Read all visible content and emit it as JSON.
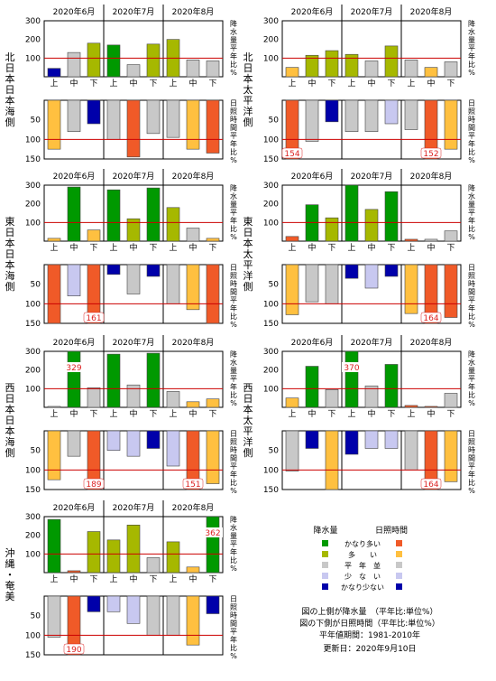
{
  "months": [
    "2020年6月",
    "2020年7月",
    "2020年8月"
  ],
  "decades": [
    "上",
    "中",
    "下",
    "上",
    "中",
    "下",
    "上",
    "中",
    "下"
  ],
  "precip_axis_label": "平年比％",
  "sun_axis_label": "平年比％",
  "precip_ticks": [
    100,
    200,
    300
  ],
  "sun_ticks": [
    50,
    100,
    150
  ],
  "colors": {
    "much_above": "#009900",
    "above": "#a6b800",
    "normal": "#c8c8c8",
    "below": "#c8c8f0",
    "much_below": "#0000aa",
    "sun_much_above": "#f05a28",
    "sun_above": "#ffc040",
    "sun_normal": "#c8c8c8",
    "sun_below": "#c8c8f0",
    "sun_much_below": "#0000aa",
    "ref_line": "#cc0000"
  },
  "chart_data": [
    {
      "type": "bar",
      "region": "北日本日本海側",
      "categories": [
        "6月上",
        "6月中",
        "6月下",
        "7月上",
        "7月中",
        "7月下",
        "8月上",
        "8月中",
        "8月下"
      ],
      "precip": [
        45,
        130,
        180,
        170,
        65,
        175,
        200,
        90,
        85
      ],
      "precip_class": [
        "much_below",
        "normal",
        "above",
        "much_above",
        "normal",
        "above",
        "above",
        "normal",
        "normal"
      ],
      "sun": [
        125,
        80,
        60,
        100,
        145,
        85,
        95,
        125,
        135
      ],
      "sun_class": [
        "sun_above",
        "sun_normal",
        "sun_much_below",
        "sun_normal",
        "sun_much_above",
        "sun_normal",
        "sun_normal",
        "sun_above",
        "sun_much_above"
      ],
      "precip_ylim": [
        0,
        300
      ],
      "sun_ylim": [
        0,
        150
      ]
    },
    {
      "type": "bar",
      "region": "北日本太平洋側",
      "categories": [
        "6月上",
        "6月中",
        "6月下",
        "7月上",
        "7月中",
        "7月下",
        "8月上",
        "8月中",
        "8月下"
      ],
      "precip": [
        50,
        115,
        140,
        120,
        85,
        165,
        90,
        50,
        80
      ],
      "precip_class": [
        "sun_above",
        "above",
        "above",
        "above",
        "normal",
        "above",
        "normal",
        "sun_above",
        "normal"
      ],
      "sun": [
        154,
        105,
        55,
        80,
        80,
        60,
        75,
        152,
        125
      ],
      "sun_class": [
        "sun_much_above",
        "sun_normal",
        "sun_much_below",
        "sun_normal",
        "sun_normal",
        "sun_below",
        "sun_normal",
        "sun_much_above",
        "sun_above"
      ],
      "precip_ylim": [
        0,
        300
      ],
      "sun_ylim": [
        0,
        150
      ],
      "sun_labels": [
        {
          "index": 0,
          "text": "154"
        },
        {
          "index": 7,
          "text": "152"
        }
      ]
    },
    {
      "type": "bar",
      "region": "東日本日本海側",
      "categories": [
        "6月上",
        "6月中",
        "6月下",
        "7月上",
        "7月中",
        "7月下",
        "8月上",
        "8月中",
        "8月下"
      ],
      "precip": [
        15,
        290,
        60,
        275,
        120,
        285,
        180,
        70,
        15
      ],
      "precip_class": [
        "sun_above",
        "much_above",
        "sun_above",
        "much_above",
        "above",
        "much_above",
        "above",
        "normal",
        "sun_above"
      ],
      "sun": [
        150,
        80,
        161,
        25,
        75,
        30,
        100,
        115,
        150
      ],
      "sun_class": [
        "sun_much_above",
        "sun_below",
        "sun_much_above",
        "much_below",
        "normal",
        "much_below",
        "normal",
        "sun_above",
        "sun_much_above"
      ],
      "precip_ylim": [
        0,
        300
      ],
      "sun_ylim": [
        0,
        150
      ],
      "sun_labels": [
        {
          "index": 2,
          "text": "161"
        }
      ]
    },
    {
      "type": "bar",
      "region": "東日本太平洋側",
      "categories": [
        "6月上",
        "6月中",
        "6月下",
        "7月上",
        "7月中",
        "7月下",
        "8月上",
        "8月中",
        "8月下"
      ],
      "precip": [
        25,
        195,
        125,
        300,
        170,
        265,
        10,
        10,
        55
      ],
      "precip_class": [
        "sun_much_above",
        "much_above",
        "above",
        "much_above",
        "above",
        "much_above",
        "sun_much_above",
        "normal",
        "normal"
      ],
      "sun": [
        128,
        95,
        100,
        35,
        60,
        30,
        125,
        164,
        135
      ],
      "sun_class": [
        "sun_above",
        "normal",
        "normal",
        "much_below",
        "below",
        "much_below",
        "sun_above",
        "sun_much_above",
        "sun_much_above"
      ],
      "precip_ylim": [
        0,
        300
      ],
      "sun_ylim": [
        0,
        150
      ],
      "sun_labels": [
        {
          "index": 7,
          "text": "164"
        }
      ]
    },
    {
      "type": "bar",
      "region": "西日本日本海側",
      "categories": [
        "6月上",
        "6月中",
        "6月下",
        "7月上",
        "7月中",
        "7月下",
        "8月上",
        "8月中",
        "8月下"
      ],
      "precip": [
        5,
        329,
        105,
        285,
        120,
        290,
        85,
        30,
        45
      ],
      "precip_class": [
        "normal",
        "much_above",
        "normal",
        "much_above",
        "normal",
        "much_above",
        "normal",
        "sun_above",
        "sun_above"
      ],
      "sun": [
        125,
        65,
        189,
        50,
        65,
        45,
        90,
        151,
        135
      ],
      "sun_class": [
        "sun_above",
        "normal",
        "sun_much_above",
        "below",
        "below",
        "much_below",
        "below",
        "sun_much_above",
        "sun_above"
      ],
      "precip_ylim": [
        0,
        300
      ],
      "sun_ylim": [
        0,
        150
      ],
      "precip_labels": [
        {
          "index": 1,
          "text": "329"
        }
      ],
      "sun_labels": [
        {
          "index": 2,
          "text": "189"
        },
        {
          "index": 7,
          "text": "151"
        }
      ]
    },
    {
      "type": "bar",
      "region": "西日本太平洋側",
      "categories": [
        "6月上",
        "6月中",
        "6月下",
        "7月上",
        "7月中",
        "7月下",
        "8月上",
        "8月中",
        "8月下"
      ],
      "precip": [
        50,
        220,
        95,
        370,
        115,
        230,
        10,
        5,
        75
      ],
      "precip_class": [
        "sun_above",
        "much_above",
        "normal",
        "much_above",
        "normal",
        "much_above",
        "sun_much_above",
        "sun_much_above",
        "normal"
      ],
      "sun": [
        103,
        45,
        150,
        60,
        45,
        45,
        100,
        164,
        130
      ],
      "sun_class": [
        "normal",
        "much_below",
        "sun_above",
        "much_below",
        "below",
        "below",
        "normal",
        "sun_much_above",
        "sun_above"
      ],
      "precip_ylim": [
        0,
        300
      ],
      "sun_ylim": [
        0,
        150
      ],
      "precip_labels": [
        {
          "index": 3,
          "text": "370"
        }
      ],
      "sun_labels": [
        {
          "index": 7,
          "text": "164"
        }
      ]
    },
    {
      "type": "bar",
      "region": "沖縄・奄美",
      "categories": [
        "6月上",
        "6月中",
        "6月下",
        "7月上",
        "7月中",
        "7月下",
        "8月上",
        "8月中",
        "8月下"
      ],
      "precip": [
        285,
        10,
        220,
        175,
        255,
        80,
        165,
        30,
        362
      ],
      "precip_class": [
        "much_above",
        "sun_much_above",
        "above",
        "above",
        "above",
        "normal",
        "above",
        "sun_above",
        "much_above"
      ],
      "sun": [
        105,
        190,
        40,
        40,
        70,
        100,
        100,
        125,
        45
      ],
      "sun_class": [
        "normal",
        "sun_much_above",
        "much_below",
        "below",
        "below",
        "normal",
        "normal",
        "sun_above",
        "much_below"
      ],
      "precip_ylim": [
        0,
        300
      ],
      "sun_ylim": [
        0,
        150
      ],
      "precip_labels": [
        {
          "index": 8,
          "text": "362"
        }
      ],
      "sun_labels": [
        {
          "index": 1,
          "text": "190"
        }
      ]
    }
  ],
  "legend": {
    "title_precip": "降水量",
    "title_sun": "日照時間",
    "items": [
      {
        "label": "かなり多い",
        "precip_color": "#009900",
        "sun_color": "#f05a28"
      },
      {
        "label": "多　　い",
        "precip_color": "#a6b800",
        "sun_color": "#ffc040"
      },
      {
        "label": "平　年　並",
        "precip_color": "#c8c8c8",
        "sun_color": "#c8c8c8"
      },
      {
        "label": "少　な　い",
        "precip_color": "#c8c8f0",
        "sun_color": "#c8c8f0"
      },
      {
        "label": "かなり少ない",
        "precip_color": "#0000aa",
        "sun_color": "#0000aa"
      }
    ]
  },
  "notes": {
    "line1": "図の上側が降水量　（平年比:単位%）",
    "line2": "図の下側が日照時間（平年比:単位%）",
    "line3": "平年値期間：1981-2010年",
    "line4": "更新日：2020年9月10日"
  }
}
